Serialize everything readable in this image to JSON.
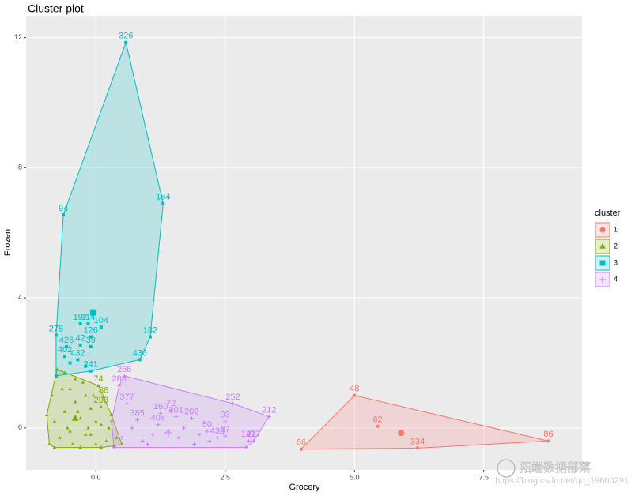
{
  "chart_data": {
    "type": "scatter",
    "title": "Cluster plot",
    "x_label": "Grocery",
    "y_label": "Frozen",
    "xlim": [
      -1.35,
      9.4
    ],
    "ylim": [
      -1.29,
      12.67
    ],
    "xticks": [
      {
        "value": 0,
        "label": "0.0"
      },
      {
        "value": 2.5,
        "label": "2.5"
      },
      {
        "value": 5,
        "label": "5.0"
      },
      {
        "value": 7.5,
        "label": "7.5"
      }
    ],
    "yticks": [
      0,
      4,
      8,
      12
    ],
    "grid": true,
    "legend_title": "cluster",
    "legend_position": "right",
    "watermark": "https://blog.csdn.net/qq_19600291",
    "watermark_brand": "拓端数据部落",
    "series": [
      {
        "name": "1",
        "color": "#F8766D",
        "shape": "circle",
        "x": [
          5.0,
          5.45,
          3.97,
          6.22,
          8.75
        ],
        "y": [
          1.0,
          0.05,
          -0.65,
          -0.62,
          -0.4
        ],
        "labels": [
          "48",
          "62",
          "66",
          "334",
          "86"
        ],
        "center": [
          5.9,
          -0.15
        ]
      },
      {
        "name": "2",
        "color": "#7CAE00",
        "shape": "triangle",
        "x": [
          -0.9,
          -0.8,
          -0.85,
          -0.75,
          -0.6,
          -0.5,
          -0.4,
          -0.3,
          -0.2,
          -0.1,
          0,
          0.1,
          0.2,
          0.3,
          0.4,
          0.5,
          -0.7,
          -0.6,
          -0.5,
          -0.4,
          -0.3,
          -0.2,
          -0.1,
          0.0,
          0.1,
          -0.65,
          -0.55,
          -0.45,
          -0.35,
          -0.25,
          -0.15,
          -0.05,
          0.25,
          0.35,
          -0.95,
          -0.8,
          0.05,
          0.15,
          0.1
        ],
        "y": [
          -0.5,
          0.2,
          1.0,
          1.8,
          1.7,
          1.2,
          0.8,
          0.3,
          -0.2,
          0.6,
          -0.5,
          0.1,
          -0.4,
          0.4,
          -0.3,
          -0.5,
          -0.3,
          0.5,
          -0.1,
          1.5,
          -0.6,
          1.0,
          -0.2,
          0.2,
          -0.6,
          1.2,
          0.0,
          -0.5,
          0.5,
          1.4,
          0.0,
          1.0,
          0.0,
          -0.55,
          0.4,
          -0.6,
          1.3,
          0.95,
          0.65
        ],
        "labels": [
          null,
          null,
          null,
          null,
          null,
          null,
          null,
          null,
          null,
          null,
          null,
          null,
          null,
          null,
          null,
          null,
          null,
          null,
          null,
          null,
          null,
          null,
          null,
          null,
          null,
          null,
          null,
          null,
          null,
          null,
          null,
          null,
          null,
          null,
          null,
          null,
          "74",
          "88",
          "293"
        ],
        "center": [
          -0.4,
          0.3
        ]
      },
      {
        "name": "3",
        "color": "#00BFC4",
        "shape": "square",
        "x": [
          0.58,
          1.3,
          -0.63,
          -0.77,
          -0.3,
          -0.15,
          0.1,
          -0.57,
          -0.3,
          -0.1,
          -0.1,
          1.05,
          -0.35,
          -0.6,
          0.85,
          -0.1,
          -0.77,
          -0.5,
          -0.2
        ],
        "y": [
          11.85,
          6.9,
          6.55,
          2.85,
          3.2,
          3.2,
          3.1,
          2.5,
          2.55,
          2.8,
          2.5,
          2.8,
          2.1,
          2.2,
          2.1,
          1.75,
          1.6,
          2.0,
          1.9
        ],
        "labels": [
          "326",
          "184",
          "94",
          "278",
          "197",
          "114",
          "104",
          "426",
          "42",
          "126",
          "39",
          "182",
          "432",
          "402",
          "436",
          "241",
          null,
          null,
          null
        ],
        "center": [
          -0.05,
          3.55
        ]
      },
      {
        "name": "4",
        "color": "#C77CFF",
        "shape": "plus",
        "x": [
          0.55,
          0.45,
          2.65,
          3.35,
          2.5,
          0.6,
          0.8,
          1.25,
          1.45,
          1.55,
          1.2,
          1.85,
          2.5,
          2.95,
          3.05,
          2.35,
          2.15,
          0.5,
          0.9,
          1.1,
          1.6,
          1.9,
          2.2,
          0.7,
          1.0,
          1.4,
          1.7,
          2.0,
          0.35,
          2.9,
          0.3
        ],
        "y": [
          1.6,
          1.3,
          0.75,
          0.35,
          0.2,
          0.75,
          0.25,
          0.45,
          0.55,
          0.35,
          0.1,
          0.3,
          -0.25,
          -0.4,
          -0.4,
          -0.3,
          -0.1,
          -0.3,
          -0.4,
          -0.2,
          -0.3,
          -0.5,
          -0.4,
          0.0,
          -0.5,
          -0.1,
          0.0,
          -0.2,
          -0.6,
          -0.6,
          0.2
        ],
        "labels": [
          "266",
          "288",
          "252",
          "212",
          "93",
          "377",
          "385",
          "160",
          "72",
          "201",
          "408",
          "202",
          "87",
          "147",
          "217",
          "438",
          "50",
          null,
          null,
          null,
          null,
          null,
          null,
          null,
          null,
          null,
          null,
          null,
          null,
          null,
          null
        ],
        "center": [
          1.4,
          -0.15
        ]
      }
    ]
  }
}
